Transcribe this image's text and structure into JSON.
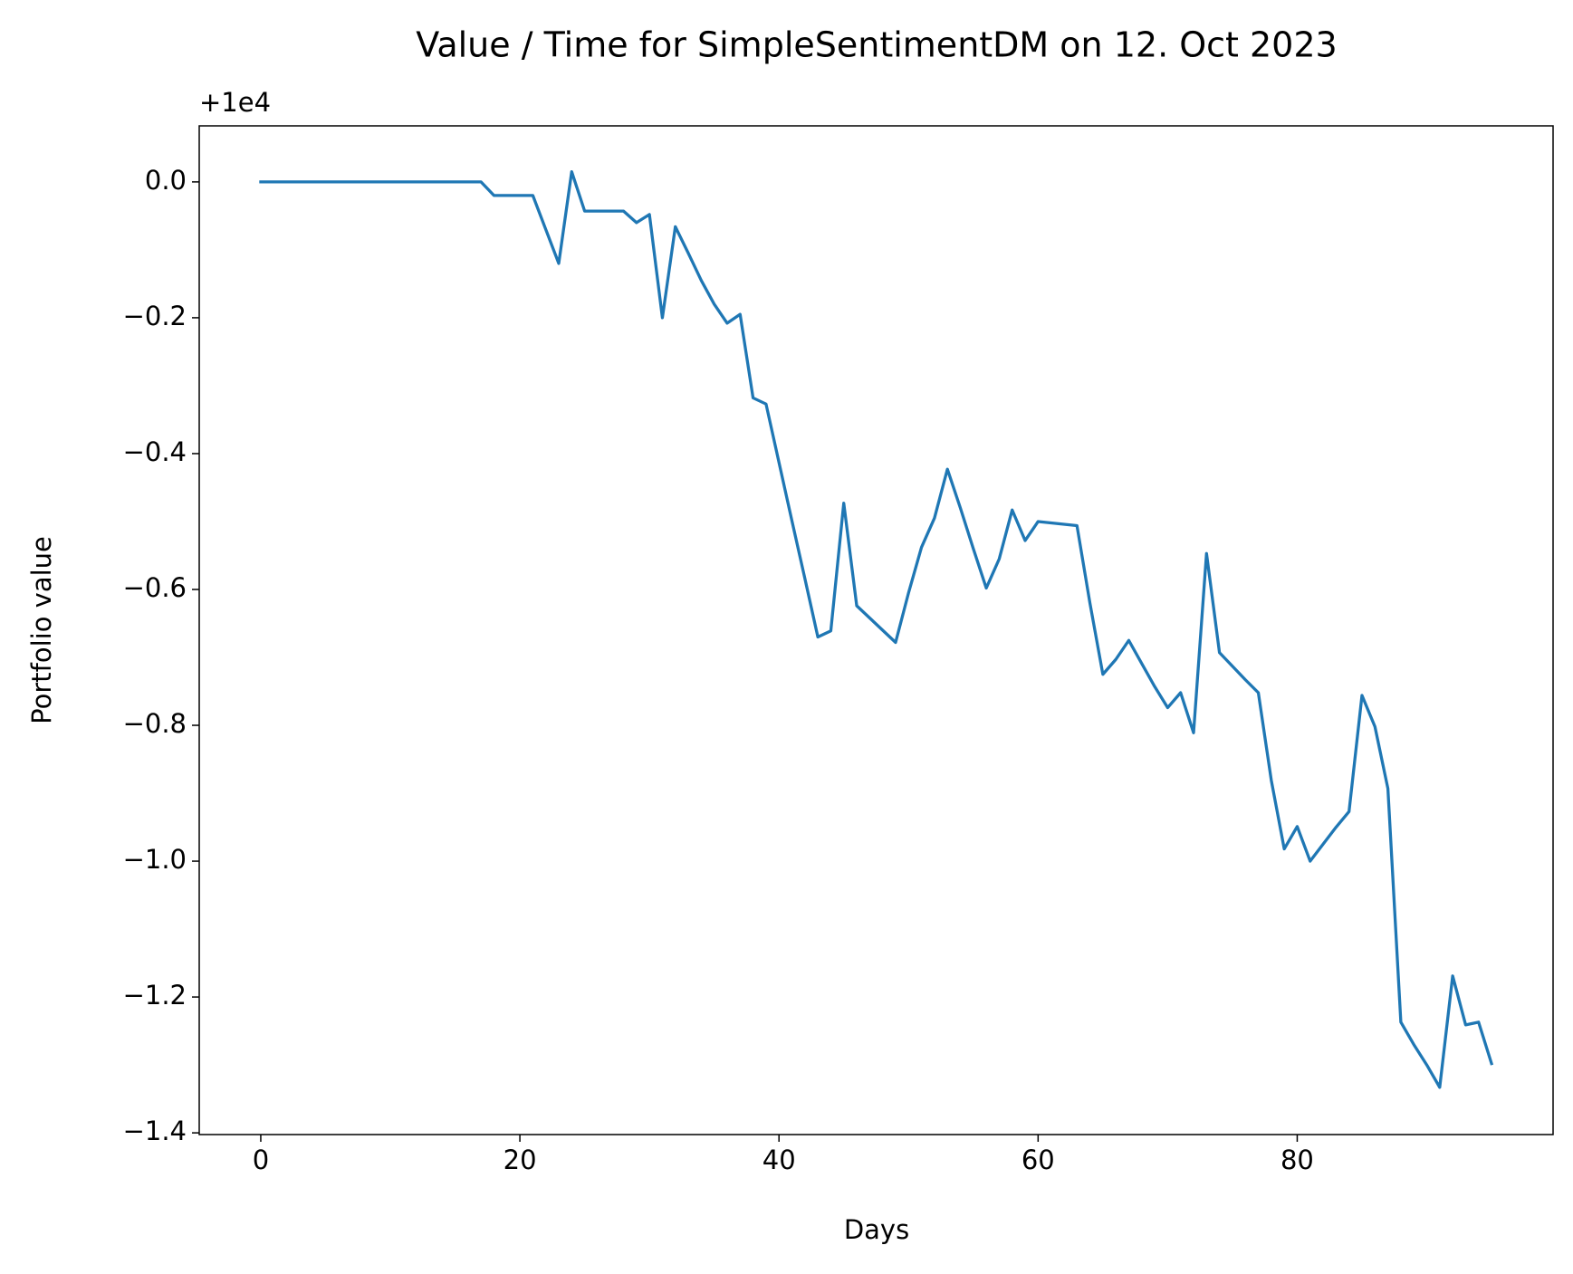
{
  "chart_data": {
    "type": "line",
    "title": "Value / Time for SimpleSentimentDM on 12. Oct 2023",
    "x_label": "Days",
    "y_label": "Portfolio value",
    "y_offset_label": "+1e4",
    "x": [
      0,
      1,
      2,
      3,
      4,
      5,
      6,
      7,
      8,
      9,
      10,
      11,
      12,
      13,
      14,
      15,
      16,
      17,
      18,
      19,
      20,
      21,
      22,
      23,
      24,
      25,
      26,
      27,
      28,
      29,
      30,
      31,
      32,
      33,
      34,
      35,
      36,
      37,
      38,
      39,
      40,
      41,
      42,
      43,
      44,
      45,
      46,
      47,
      48,
      49,
      50,
      51,
      52,
      53,
      54,
      55,
      56,
      57,
      58,
      59,
      60,
      61,
      62,
      63,
      64,
      65,
      66,
      67,
      68,
      69,
      70,
      71,
      72,
      73,
      74,
      75,
      76,
      77,
      78,
      79,
      80,
      81,
      82,
      83,
      84,
      85,
      86,
      87,
      88,
      89,
      90,
      91,
      92,
      93,
      94,
      95
    ],
    "series": [
      {
        "name": "Portfolio value",
        "color": "#1f77b4",
        "values": [
          0,
          0,
          0,
          0,
          0,
          0,
          0,
          0,
          0,
          0,
          0,
          0,
          0,
          0,
          0,
          0,
          0,
          0,
          -0.02,
          -0.02,
          -0.02,
          -0.02,
          -0.07,
          -0.12,
          0.015,
          -0.043,
          -0.043,
          -0.043,
          -0.043,
          -0.06,
          -0.048,
          -0.2,
          -0.066,
          -0.105,
          -0.145,
          -0.18,
          -0.208,
          -0.195,
          -0.318,
          -0.327,
          -0.413,
          -0.499,
          -0.584,
          -0.67,
          -0.661,
          -0.473,
          -0.624,
          -0.642,
          -0.66,
          -0.678,
          -0.605,
          -0.538,
          -0.495,
          -0.423,
          -0.48,
          -0.54,
          -0.598,
          -0.555,
          -0.483,
          -0.528,
          -0.5,
          -0.502,
          -0.504,
          -0.506,
          -0.62,
          -0.725,
          -0.703,
          -0.675,
          -0.709,
          -0.743,
          -0.774,
          -0.752,
          -0.811,
          -0.547,
          -0.693,
          -0.713,
          -0.733,
          -0.752,
          -0.881,
          -0.982,
          -0.949,
          -1.0,
          -0.975,
          -0.95,
          -0.927,
          -0.756,
          -0.802,
          -0.893,
          -1.237,
          -1.27,
          -1.3,
          -1.333,
          -1.169,
          -1.241,
          -1.237,
          -1.298
        ]
      }
    ],
    "xlim": [
      -4.75,
      99.75
    ],
    "xticks": [
      0,
      20,
      40,
      60,
      80
    ],
    "ylim": [
      -1.4025,
      0.0825
    ],
    "yticks": [
      {
        "value": -1.4,
        "label": "−1.4"
      },
      {
        "value": -1.2,
        "label": "−1.2"
      },
      {
        "value": -1.0,
        "label": "−1.0"
      },
      {
        "value": -0.8,
        "label": "−0.8"
      },
      {
        "value": -0.6,
        "label": "−0.6"
      },
      {
        "value": -0.4,
        "label": "−0.4"
      },
      {
        "value": -0.2,
        "label": "−0.2"
      },
      {
        "value": 0,
        "label": "0.0"
      }
    ],
    "grid": false
  }
}
